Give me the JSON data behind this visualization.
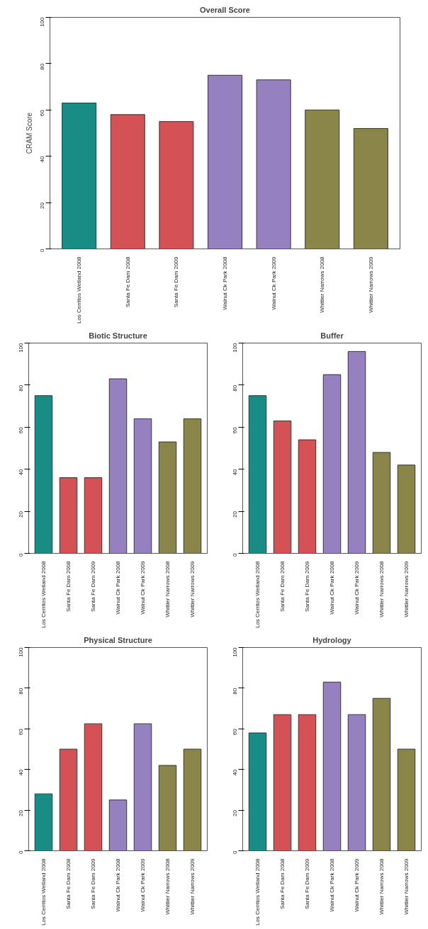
{
  "chart_data": [
    {
      "type": "bar",
      "title": "Overall Score",
      "ylabel": "CRAM Score",
      "categories": [
        "Los Cerritos Wetland 2008",
        "Santa Fe Dam 2008",
        "Santa Fe Dam 2009",
        "Walnut Ck Park 2008",
        "Walnut Ck Park 2009",
        "Whittier Narrows 2008",
        "Whittier Narrows 2009"
      ],
      "values": [
        63,
        58,
        55,
        75,
        73,
        60,
        52
      ],
      "colors": [
        "#1a8c86",
        "#d45156",
        "#d45156",
        "#9580c0",
        "#9580c0",
        "#8a8549",
        "#8a8549"
      ],
      "ylim": [
        0,
        100
      ],
      "yticks": [
        0,
        20,
        40,
        60,
        80,
        100
      ]
    },
    {
      "type": "bar",
      "title": "Biotic Structure",
      "categories": [
        "Los Cerritos Wetland 2008",
        "Santa Fe Dam 2008",
        "Santa Fe Dam 2009",
        "Walnut Ck Park 2008",
        "Walnut Ck Park 2009",
        "Whittier Narrows 2008",
        "Whittier Narrows 2009"
      ],
      "values": [
        75,
        36,
        36,
        83,
        64,
        53,
        64
      ],
      "colors": [
        "#1a8c86",
        "#d45156",
        "#d45156",
        "#9580c0",
        "#9580c0",
        "#8a8549",
        "#8a8549"
      ],
      "ylim": [
        0,
        100
      ],
      "yticks": [
        0,
        20,
        40,
        60,
        80,
        100
      ]
    },
    {
      "type": "bar",
      "title": "Buffer",
      "categories": [
        "Los Cerritos Wetland 2008",
        "Santa Fe Dam 2008",
        "Santa Fe Dam 2009",
        "Walnut Ck Park 2008",
        "Walnut Ck Park 2009",
        "Whittier Narrows 2008",
        "Whittier Narrows 2009"
      ],
      "values": [
        75,
        63,
        54,
        85,
        96,
        48,
        42
      ],
      "colors": [
        "#1a8c86",
        "#d45156",
        "#d45156",
        "#9580c0",
        "#9580c0",
        "#8a8549",
        "#8a8549"
      ],
      "ylim": [
        0,
        100
      ],
      "yticks": [
        0,
        20,
        40,
        60,
        80,
        100
      ]
    },
    {
      "type": "bar",
      "title": "Physical Structure",
      "categories": [
        "Los Cerritos Wetland 2008",
        "Santa Fe Dam 2008",
        "Santa Fe Dam 2009",
        "Walnut Ck Park 2008",
        "Walnut Ck Park 2009",
        "Whittier Narrows 2008",
        "Whittier Narrows 2009"
      ],
      "values": [
        28,
        50,
        62.5,
        25,
        62.5,
        42,
        50
      ],
      "colors": [
        "#1a8c86",
        "#d45156",
        "#d45156",
        "#9580c0",
        "#9580c0",
        "#8a8549",
        "#8a8549"
      ],
      "ylim": [
        0,
        100
      ],
      "yticks": [
        0,
        20,
        40,
        60,
        80,
        100
      ]
    },
    {
      "type": "bar",
      "title": "Hydrology",
      "categories": [
        "Los Cerritos Wetland 2008",
        "Santa Fe Dam 2008",
        "Santa Fe Dam 2009",
        "Walnut Ck Park 2008",
        "Walnut Ck Park 2009",
        "Whittier Narrows 2008",
        "Whittier Narrows 2009"
      ],
      "values": [
        58,
        67,
        67,
        83,
        67,
        75,
        50
      ],
      "colors": [
        "#1a8c86",
        "#d45156",
        "#d45156",
        "#9580c0",
        "#9580c0",
        "#8a8549",
        "#8a8549"
      ],
      "ylim": [
        0,
        100
      ],
      "yticks": [
        0,
        20,
        40,
        60,
        80,
        100
      ]
    }
  ]
}
